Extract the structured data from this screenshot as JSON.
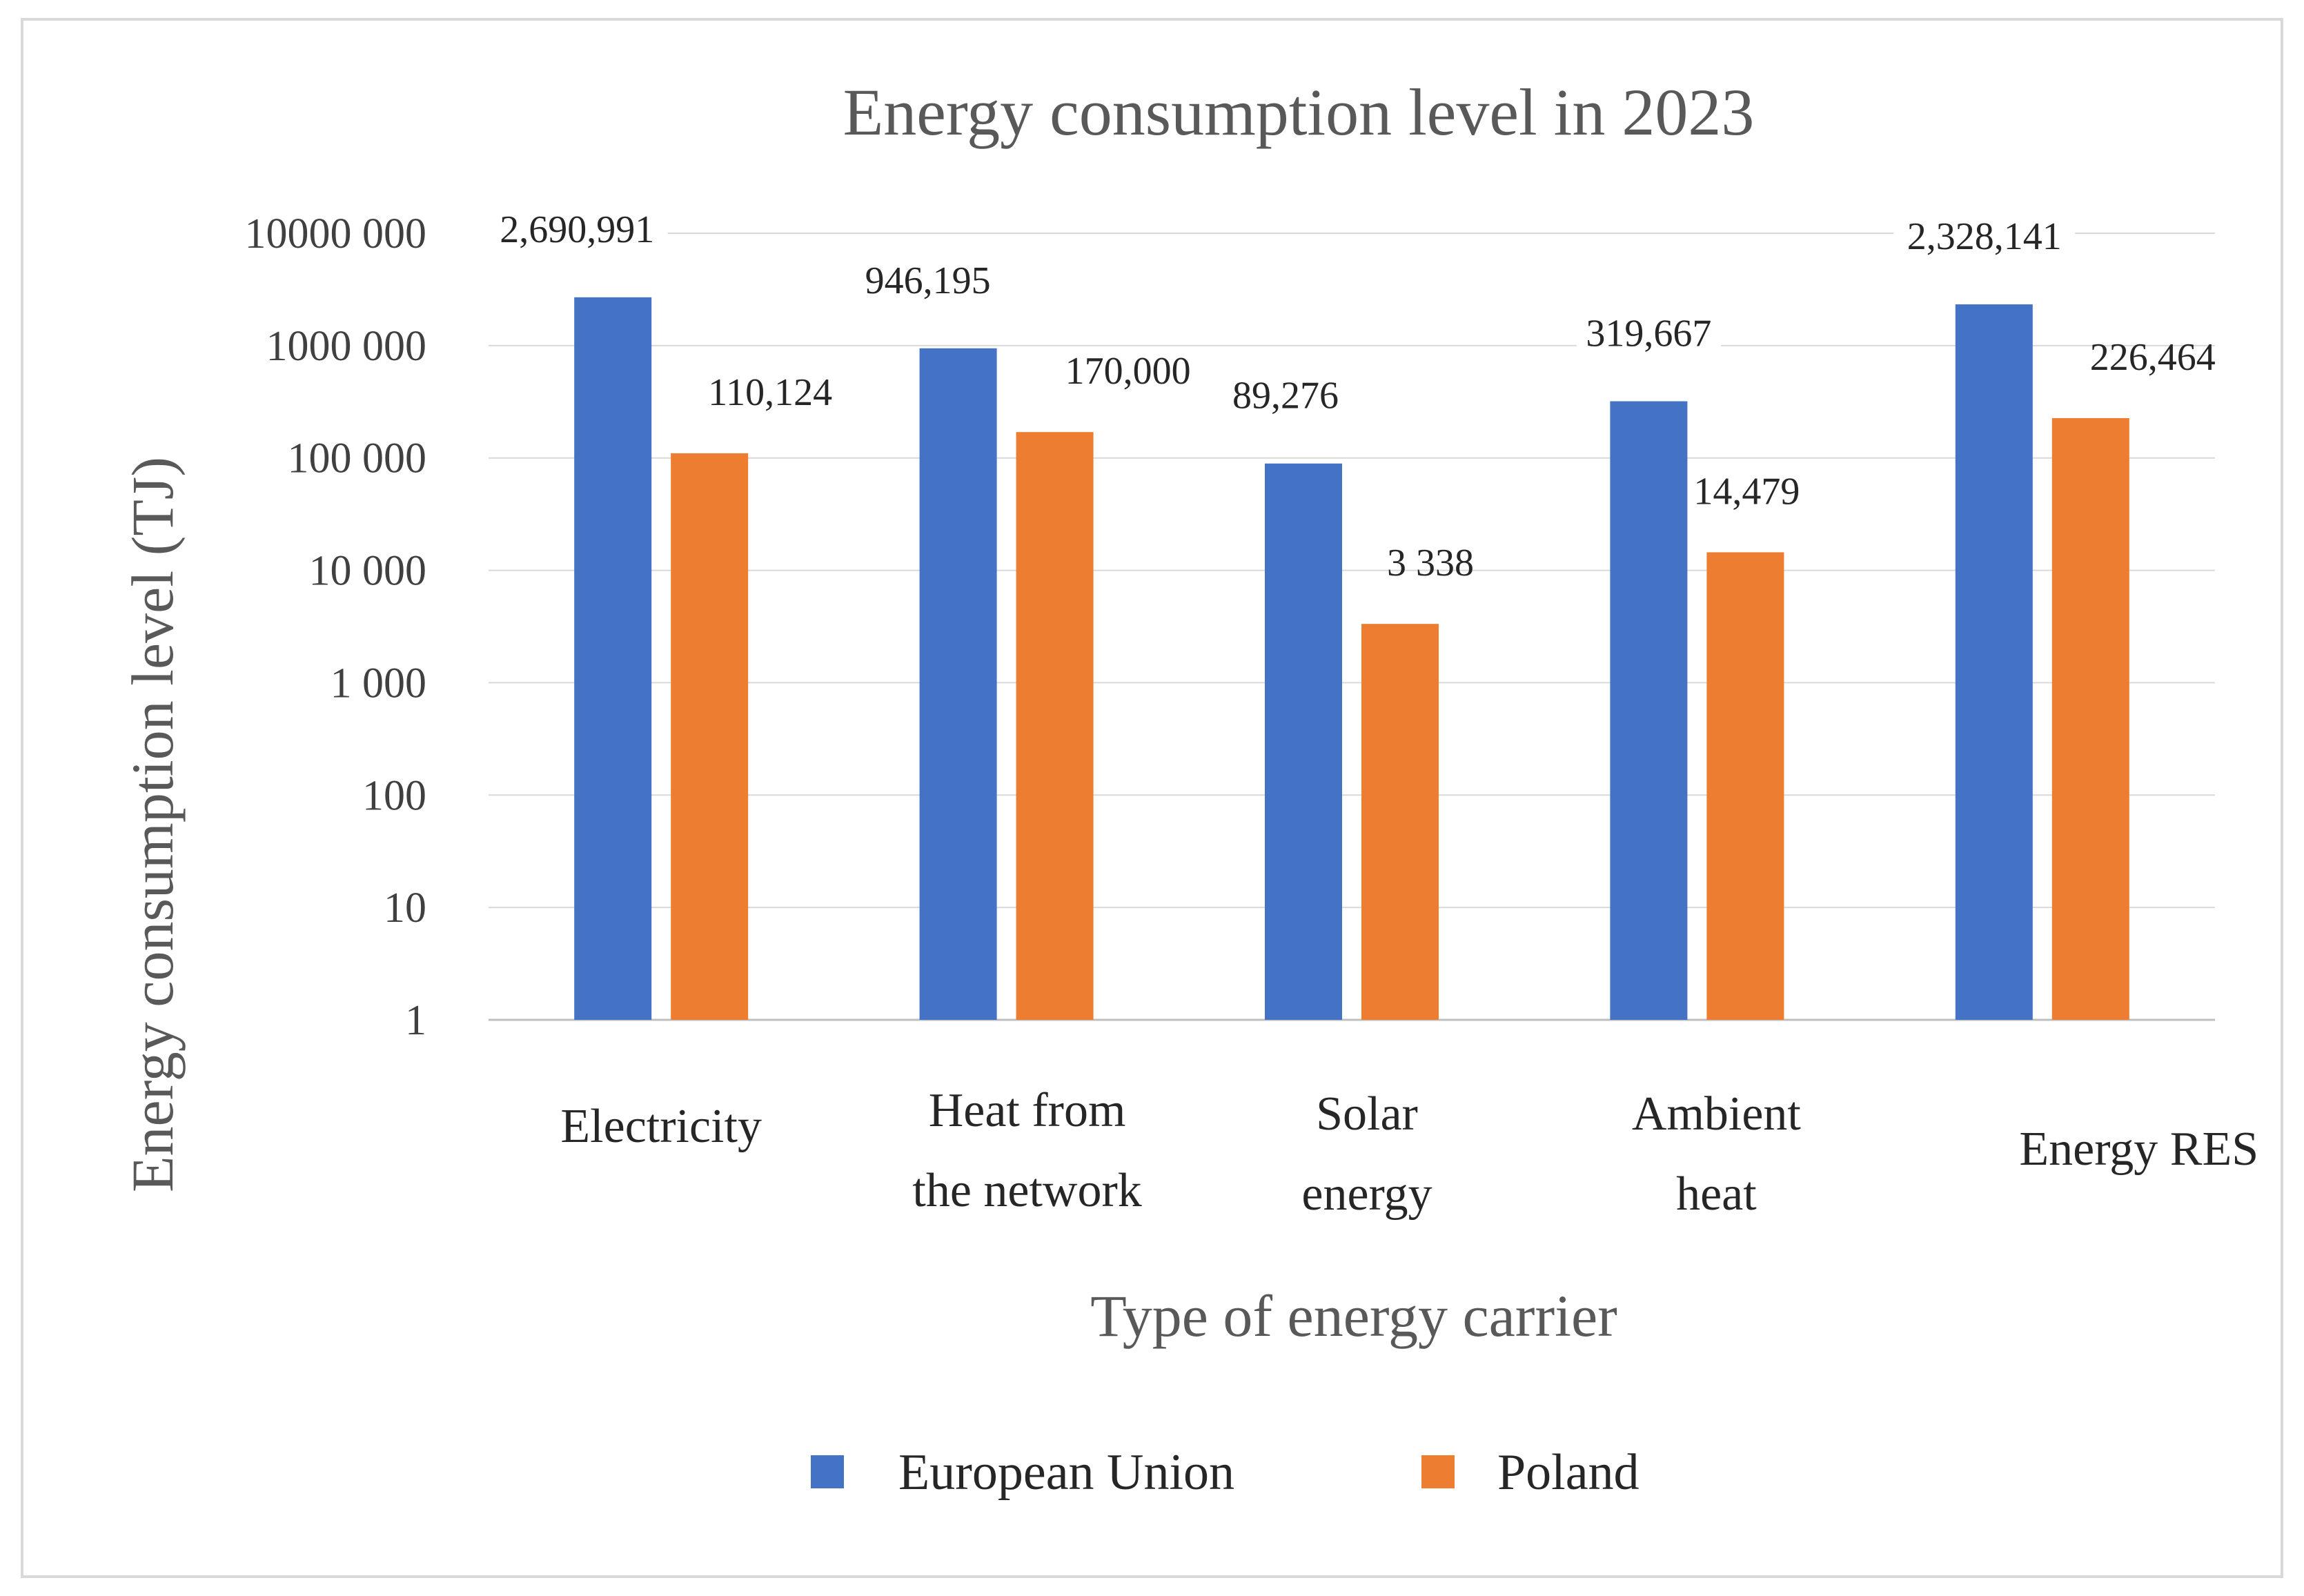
{
  "chart_data": {
    "type": "bar",
    "title": "Energy consumption level in 2023",
    "xlabel": "Type of energy carrier",
    "ylabel": "Energy consumption level (TJ)",
    "yscale": "log",
    "ylim": [
      1,
      10000000
    ],
    "grid": true,
    "legend_position": "bottom",
    "yticks": [
      {
        "value": 1,
        "label": "1"
      },
      {
        "value": 10,
        "label": "10"
      },
      {
        "value": 100,
        "label": "100"
      },
      {
        "value": 1000,
        "label": "1 000"
      },
      {
        "value": 10000,
        "label": "10 000"
      },
      {
        "value": 100000,
        "label": "100 000"
      },
      {
        "value": 1000000,
        "label": "1000 000"
      },
      {
        "value": 10000000,
        "label": "10000 000"
      }
    ],
    "categories": [
      [
        "Electricity"
      ],
      [
        "Heat from",
        "the network"
      ],
      [
        "Solar",
        "energy"
      ],
      [
        "Ambient",
        "heat"
      ],
      [
        "Energy RES"
      ]
    ],
    "series": [
      {
        "name": "European Union",
        "color": "#4472c4",
        "values": [
          2690991,
          946195,
          89276,
          319667,
          2328141
        ],
        "labels": [
          "2,690,991",
          "946,195",
          "89,276",
          "319,667",
          "2,328,141"
        ]
      },
      {
        "name": "Poland",
        "color": "#ed7d31",
        "values": [
          110124,
          170000,
          3338,
          14479,
          226464
        ],
        "labels": [
          "110,124",
          "170,000",
          "3 338",
          "14,479",
          "226,464"
        ]
      }
    ]
  }
}
